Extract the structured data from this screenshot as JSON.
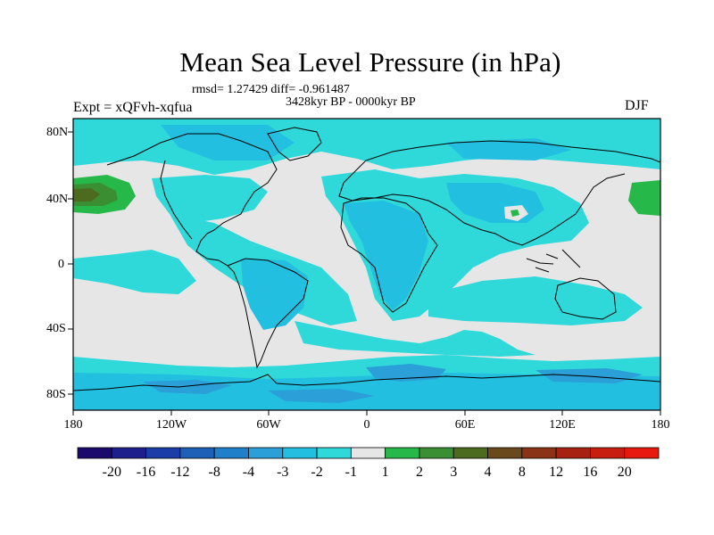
{
  "title": "Mean Sea Level Pressure (in hPa)",
  "stats": "rmsd= 1.27429 diff= -0.961487",
  "period": "3428kyr BP - 0000kyr BP",
  "experiment": "Expt = xQFvh-xqfua",
  "season": "DJF",
  "lat_labels": [
    "80N",
    "40N",
    "0",
    "40S",
    "80S"
  ],
  "lon_labels": [
    "180",
    "120W",
    "60W",
    "0",
    "60E",
    "120E",
    "180"
  ],
  "colorbar": {
    "labels": [
      "-20",
      "-16",
      "-12",
      "-8",
      "-4",
      "-3",
      "-2",
      "-1",
      "1",
      "2",
      "3",
      "4",
      "8",
      "12",
      "16",
      "20"
    ],
    "colors": [
      "#1a0a6b",
      "#1c1f8c",
      "#1a3da8",
      "#1e5fb8",
      "#1f7fc9",
      "#2a9fd8",
      "#22bfe0",
      "#2fd9d9",
      "#e6e6e6",
      "#27b84a",
      "#3a8f33",
      "#4c6b1e",
      "#6a4a1c",
      "#8a3316",
      "#a82212",
      "#c81e10",
      "#e8190e"
    ]
  },
  "palette": {
    "neutral": "#e6e6e6",
    "light_cyan": "#2fd9d9",
    "cyan": "#22bfe0",
    "mid_blue": "#2a9fd8",
    "green": "#27b84a",
    "dark_green": "#3a8f33",
    "olive": "#4c6b1e"
  }
}
